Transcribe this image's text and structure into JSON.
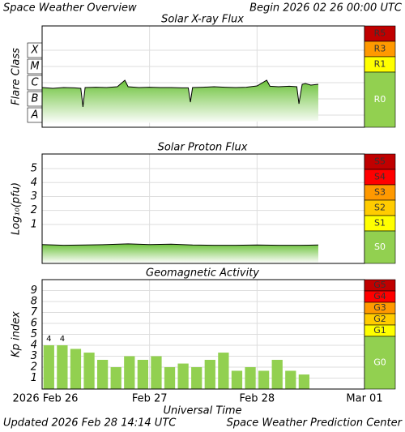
{
  "header": {
    "title": "Space Weather Overview",
    "begin": "Begin 2026 02 26 00:00 UTC"
  },
  "footer": {
    "updated": "Updated 2026 Feb 28 14:14 UTC",
    "center": "Space Weather Prediction Center"
  },
  "x_axis": {
    "label": "Universal Time",
    "xlim": [
      0,
      3
    ],
    "xticks": [
      {
        "value": 0,
        "label": "2026 Feb 26"
      },
      {
        "value": 1,
        "label": "Feb 27"
      },
      {
        "value": 2,
        "label": "Feb 28"
      },
      {
        "value": 3,
        "label": "Mar 01"
      }
    ]
  },
  "chart_data": [
    {
      "type": "line",
      "title": "Solar X-ray Flux",
      "ylabel": "Flare Class",
      "ylim": [
        -8.25,
        -2
      ],
      "yticks": [
        {
          "value": -7.5,
          "label": "A"
        },
        {
          "value": -6.5,
          "label": "B"
        },
        {
          "value": -5.5,
          "label": "C"
        },
        {
          "value": -4.5,
          "label": "M"
        },
        {
          "value": -3.5,
          "label": "X"
        }
      ],
      "scales": [
        {
          "label": "R5",
          "color": "#c00000"
        },
        {
          "label": "R3",
          "color": "#ff9900"
        },
        {
          "label": "R1",
          "color": "#ffff00"
        },
        {
          "label": "R0",
          "color": "#92d050"
        }
      ],
      "series": [
        {
          "color": "#000000",
          "x": [
            0,
            0.1,
            0.2,
            0.3,
            0.36,
            0.38,
            0.4,
            0.5,
            0.6,
            0.7,
            0.77,
            0.8,
            0.9,
            1.0,
            1.1,
            1.2,
            1.3,
            1.36,
            1.38,
            1.4,
            1.5,
            1.6,
            1.7,
            1.8,
            1.9,
            2.0,
            2.09,
            2.12,
            2.2,
            2.3,
            2.37,
            2.39,
            2.42,
            2.45,
            2.5,
            2.57
          ],
          "values": [
            -5.8,
            -5.85,
            -5.8,
            -5.82,
            -5.85,
            -7.0,
            -5.8,
            -5.78,
            -5.8,
            -5.75,
            -5.35,
            -5.75,
            -5.8,
            -5.78,
            -5.8,
            -5.8,
            -5.82,
            -5.82,
            -6.7,
            -5.8,
            -5.78,
            -5.75,
            -5.78,
            -5.8,
            -5.78,
            -5.7,
            -5.35,
            -5.72,
            -5.75,
            -5.72,
            -5.75,
            -6.8,
            -5.6,
            -5.55,
            -5.65,
            -5.6
          ]
        }
      ]
    },
    {
      "type": "line",
      "title": "Solar Proton Flux",
      "ylabel": "Log₁₀(pfu)",
      "ylim": [
        -1.8,
        6.05
      ],
      "yticks": [
        1,
        2,
        3,
        4,
        5
      ],
      "scales": [
        {
          "label": "S5",
          "color": "#c00000"
        },
        {
          "label": "S4",
          "color": "#ff0000"
        },
        {
          "label": "S3",
          "color": "#ff9900"
        },
        {
          "label": "S2",
          "color": "#ffcc00"
        },
        {
          "label": "S1",
          "color": "#ffff00"
        },
        {
          "label": "S0",
          "color": "#92d050"
        }
      ],
      "series": [
        {
          "color": "#000000",
          "x": [
            0,
            0.2,
            0.4,
            0.6,
            0.8,
            1.0,
            1.2,
            1.4,
            1.6,
            1.8,
            2.0,
            2.2,
            2.4,
            2.57
          ],
          "values": [
            -0.45,
            -0.5,
            -0.48,
            -0.45,
            -0.4,
            -0.45,
            -0.42,
            -0.48,
            -0.5,
            -0.5,
            -0.48,
            -0.5,
            -0.5,
            -0.48
          ]
        }
      ]
    },
    {
      "type": "bar",
      "title": "Geomagnetic Activity",
      "ylabel": "Kp index",
      "ylim": [
        0,
        10
      ],
      "yticks": [
        1,
        2,
        3,
        4,
        5,
        6,
        7,
        8,
        9
      ],
      "color": "#92d050",
      "bar_width": 0.1,
      "scales": [
        {
          "label": "G5",
          "color": "#c00000"
        },
        {
          "label": "G4",
          "color": "#ff0000"
        },
        {
          "label": "G3",
          "color": "#ff9900"
        },
        {
          "label": "G2",
          "color": "#ffcc00"
        },
        {
          "label": "G1",
          "color": "#ffff00"
        },
        {
          "label": "G0",
          "color": "#92d050"
        }
      ],
      "x": [
        0.0625,
        0.1875,
        0.3125,
        0.4375,
        0.5625,
        0.6875,
        0.8125,
        0.9375,
        1.0625,
        1.1875,
        1.3125,
        1.4375,
        1.5625,
        1.6875,
        1.8125,
        1.9375,
        2.0625,
        2.1875,
        2.3125,
        2.4375
      ],
      "values": [
        4,
        4,
        3.67,
        3.33,
        2.67,
        2,
        3,
        2.67,
        3,
        2,
        2.33,
        2,
        2.67,
        3.33,
        1.67,
        2,
        1.67,
        2.67,
        1.67,
        1.33
      ],
      "value_labels": [
        "4",
        "4",
        null,
        null,
        null,
        null,
        null,
        null,
        null,
        null,
        null,
        null,
        null,
        null,
        null,
        null,
        null,
        null,
        null,
        null
      ]
    }
  ]
}
